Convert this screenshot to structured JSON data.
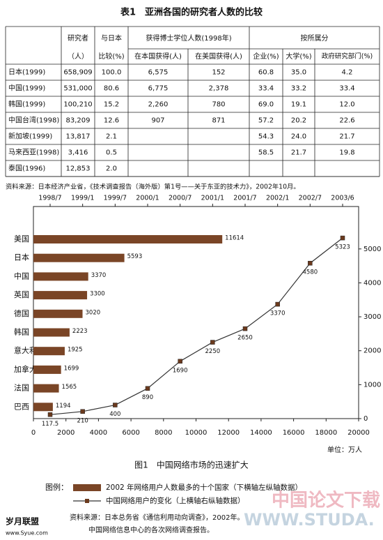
{
  "table": {
    "title": "表1　亚洲各国的研究者人数的比较",
    "header": {
      "researchers": "研究者",
      "researchers_unit": "（人）",
      "ratio_1": "与日本",
      "ratio_2": "比较(%)",
      "phd": "获得博士学位人数(1998年)",
      "phd_home": "在本国获得(人)",
      "phd_us": "在美国获得(人)",
      "affiliation": "按所属分",
      "enterprise": "企业(%)",
      "university": "大学(%)",
      "government": "政府研究部门(%)"
    },
    "rows": [
      [
        "日本(1999)",
        "658,909",
        "100.0",
        "6,575",
        "152",
        "60.8",
        "35.0",
        "4.2"
      ],
      [
        "中国(1999)",
        "531,000",
        "80.6",
        "6,775",
        "2,378",
        "33.4",
        "33.2",
        "33.4"
      ],
      [
        "韩国(1999)",
        "100,210",
        "15.2",
        "2,260",
        "780",
        "69.0",
        "19.1",
        "12.0"
      ],
      [
        "中国台湾(1998)",
        "83,209",
        "12.6",
        "907",
        "871",
        "57.2",
        "20.2",
        "22.6"
      ],
      [
        "新加坡(1999)",
        "13,817",
        "2.1",
        null,
        null,
        "54.3",
        "24.0",
        "21.7"
      ],
      [
        "马来西亚(1998)",
        "3,416",
        "0.5",
        null,
        null,
        "58.5",
        "21.7",
        "19.8"
      ],
      [
        "泰国(1996)",
        "12,853",
        "2.0",
        null,
        null,
        null,
        null,
        null
      ]
    ],
    "source": "资料来源：日本经济产业省，《技术调查报告（海外版）第1号——关于东亚的技术力》，2002年10月。"
  },
  "figure": {
    "countries": [
      "美国",
      "日本",
      "中国",
      "英国",
      "德国",
      "韩国",
      "意大利",
      "加拿大",
      "法国",
      "巴西"
    ],
    "bars": {
      "color": "#7a4526",
      "values": [
        11614,
        5593,
        3370,
        3300,
        3020,
        2223,
        1925,
        1699,
        1565,
        1194
      ]
    },
    "xlim": [
      0,
      20000
    ],
    "xticks": [
      0,
      2000,
      4000,
      6000,
      8000,
      10000,
      12000,
      14000,
      16000,
      18000,
      20000
    ],
    "line": {
      "color": "#333333",
      "dates": [
        "1998/7",
        "1999/1",
        "1999/7",
        "2000/1",
        "2000/7",
        "2001/1",
        "2001/7",
        "2002/1",
        "2002/7",
        "2003/6"
      ],
      "values": [
        117.5,
        210,
        400,
        890,
        1690,
        2250,
        2650,
        3370,
        4580,
        5323
      ]
    },
    "y2lim": [
      0,
      6250
    ],
    "y2ticks": [
      0,
      1000,
      2000,
      3000,
      4000,
      5000
    ],
    "unit": "单位：万人",
    "caption": "图1　中国网络市场的迅速扩大",
    "legend_title": "图例：",
    "legend_bars": "2002 年网络用户人数最多的十个国家（下横轴左纵轴数据）",
    "legend_line": "中国网络用户的变化（上横轴右纵轴数据）",
    "source_1": "资料来源：日本总务省《通信利用动向调查》，2002年。",
    "source_2": "中国网络信息中心的各次网络调查报告。"
  },
  "watermarks": {
    "left": "岁月联盟",
    "left_url": "www.Syue.com",
    "right": "中国论文下载",
    "right_url": "WWW.STUDA."
  }
}
